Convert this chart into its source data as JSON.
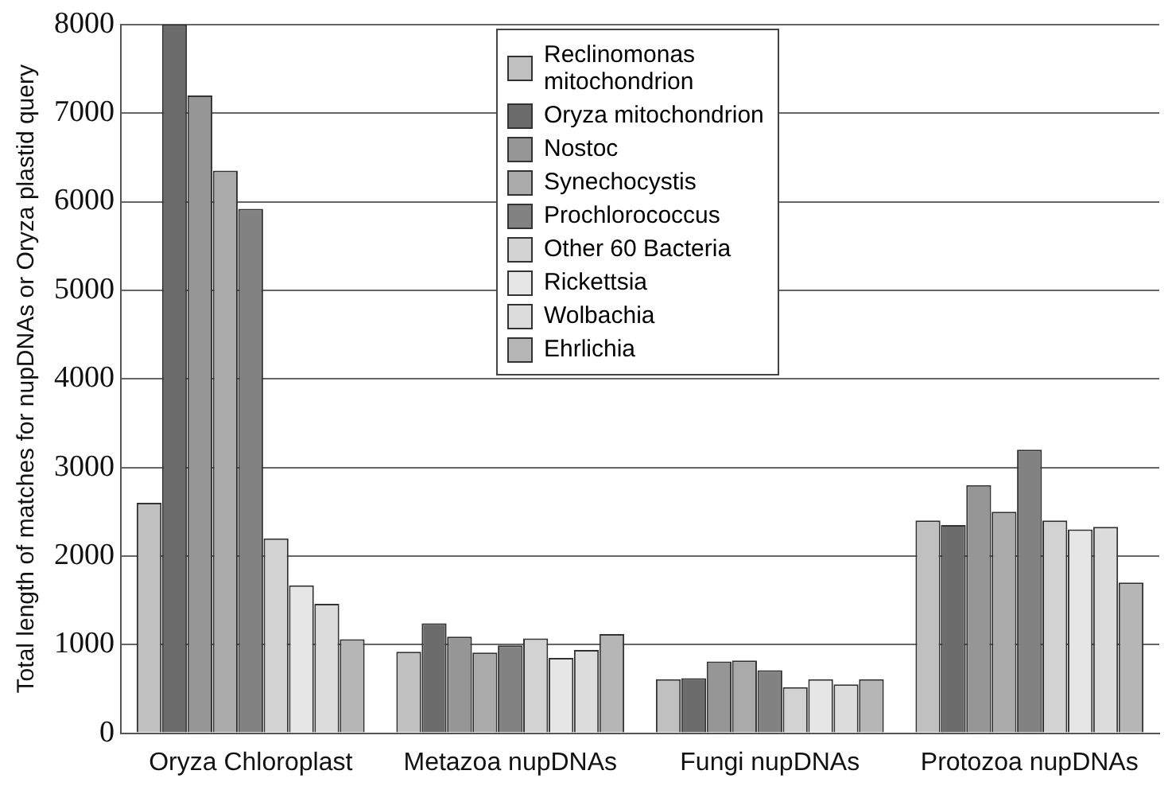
{
  "chart_data": {
    "type": "bar",
    "ylabel": "Total length of matches for nupDNAs or Oryza plastid query",
    "categories": [
      "Oryza Chloroplast",
      "Metazoa nupDNAs",
      "Fungi nupDNAs",
      "Protozoa nupDNAs"
    ],
    "series": [
      {
        "name": "Reclinomonas mitochondrion",
        "color": "#c0c0c0",
        "values": [
          2600,
          920,
          610,
          2400
        ]
      },
      {
        "name": "Oryza mitochondrion",
        "color": "#6c6c6c",
        "values": [
          8000,
          1240,
          620,
          2350
        ]
      },
      {
        "name": "Nostoc",
        "color": "#969696",
        "values": [
          7200,
          1090,
          810,
          2800
        ]
      },
      {
        "name": "Synechocystis",
        "color": "#aaaaaa",
        "values": [
          6350,
          910,
          820,
          2500
        ]
      },
      {
        "name": "Prochlorococcus",
        "color": "#828282",
        "values": [
          5920,
          990,
          710,
          3200
        ]
      },
      {
        "name": "Other 60 Bacteria",
        "color": "#d2d2d2",
        "values": [
          2200,
          1070,
          520,
          2400
        ]
      },
      {
        "name": "Rickettsia",
        "color": "#e6e6e6",
        "values": [
          1670,
          850,
          610,
          2300
        ]
      },
      {
        "name": "Wolbachia",
        "color": "#dcdcdc",
        "values": [
          1460,
          940,
          550,
          2330
        ]
      },
      {
        "name": "Ehrlichia",
        "color": "#b6b6b6",
        "values": [
          1060,
          1120,
          610,
          1700
        ]
      }
    ],
    "ylim": [
      0,
      8000
    ],
    "yticks": [
      0,
      1000,
      2000,
      3000,
      4000,
      5000,
      6000,
      7000,
      8000
    ],
    "grid": "y",
    "legend": "top"
  }
}
